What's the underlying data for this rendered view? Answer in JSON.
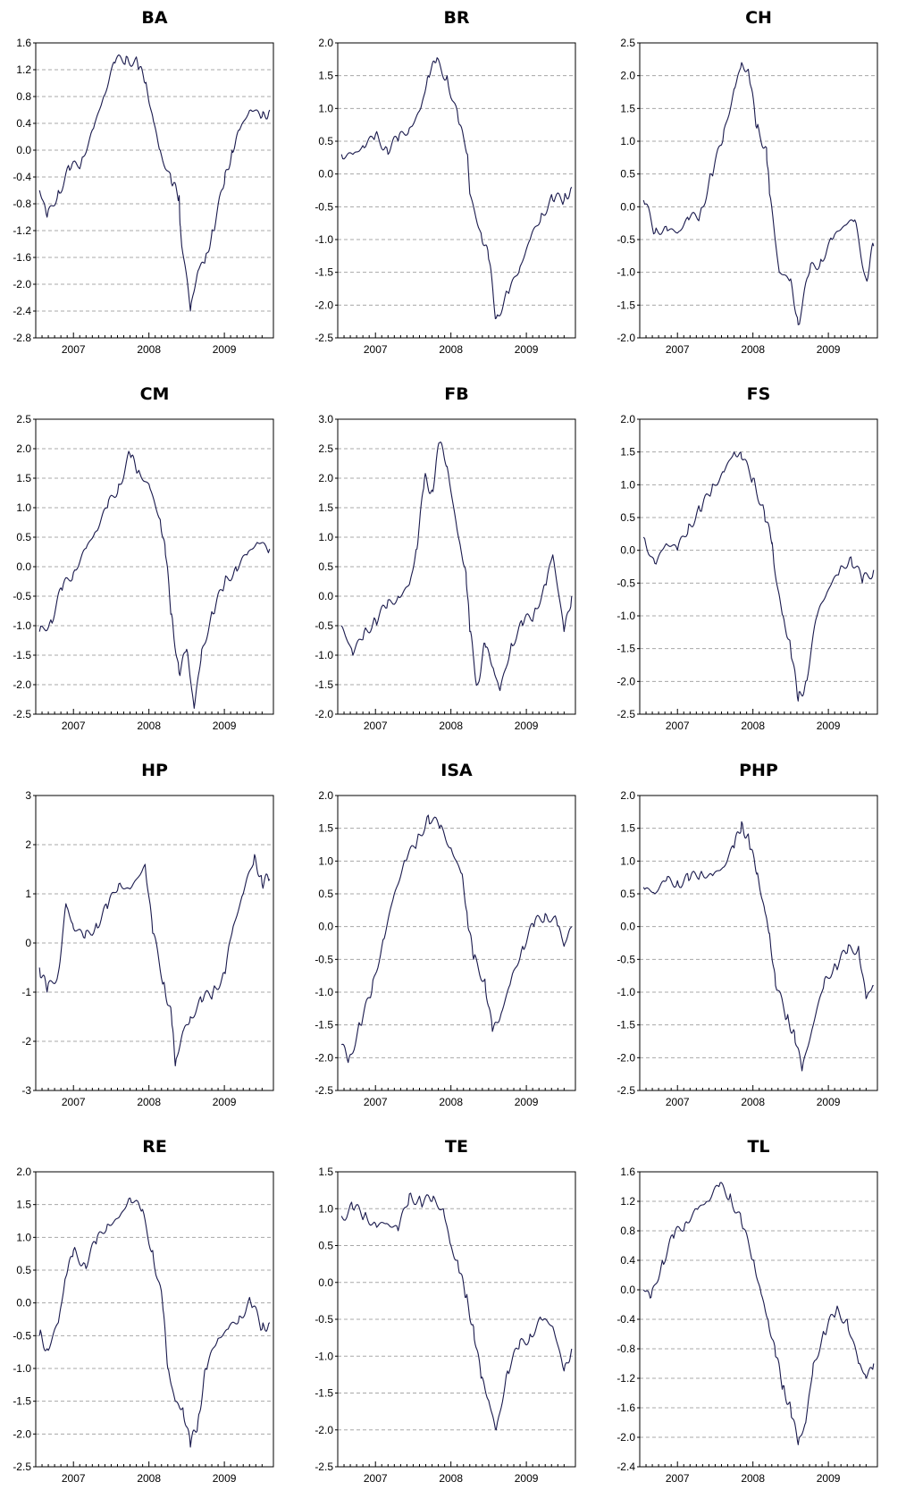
{
  "chart_data": [
    {
      "type": "line",
      "title": "BA",
      "x_tick_labels": [
        "2007",
        "2008",
        "2009"
      ],
      "ylim": [
        -2.8,
        1.6
      ],
      "y_ticks": [
        -2.8,
        -2.4,
        -2.0,
        -1.6,
        -1.2,
        -0.8,
        -0.4,
        0.0,
        0.4,
        0.8,
        1.2,
        1.6
      ],
      "y_tick_labels": [
        "-2.8",
        "-2.4",
        "-2.0",
        "-1.6",
        "-1.2",
        "-0.8",
        "-0.4",
        "0.0",
        "0.4",
        "0.8",
        "1.2",
        "1.6"
      ],
      "grid": true,
      "series": [
        {
          "x": [
            2006.55,
            2006.65,
            2006.8,
            2006.95,
            2007.1,
            2007.25,
            2007.4,
            2007.55,
            2007.7,
            2007.85,
            2007.95,
            2008.05,
            2008.15,
            2008.3,
            2008.4,
            2008.42,
            2008.55,
            2008.65,
            2008.75,
            2008.85,
            2009.0,
            2009.1,
            2009.2,
            2009.35,
            2009.5,
            2009.6
          ],
          "y": [
            -0.6,
            -1.0,
            -0.6,
            -0.3,
            -0.2,
            0.3,
            0.8,
            1.3,
            1.4,
            1.3,
            1.0,
            0.5,
            0.0,
            -0.5,
            -0.7,
            -1.2,
            -2.4,
            -1.8,
            -1.6,
            -1.2,
            -0.5,
            0.0,
            0.3,
            0.6,
            0.5,
            0.6
          ]
        }
      ]
    },
    {
      "type": "line",
      "title": "BR",
      "x_tick_labels": [
        "2007",
        "2008",
        "2009"
      ],
      "ylim": [
        -2.5,
        2.0
      ],
      "y_ticks": [
        -2.5,
        -2.0,
        -1.5,
        -1.0,
        -0.5,
        0.0,
        0.5,
        1.0,
        1.5,
        2.0
      ],
      "y_tick_labels": [
        "-2.5",
        "-2.0",
        "-1.5",
        "-1.0",
        "-0.5",
        "0.0",
        "0.5",
        "1.0",
        "1.5",
        "2.0"
      ],
      "grid": true,
      "series": [
        {
          "x": [
            2006.55,
            2006.7,
            2006.85,
            2007.0,
            2007.15,
            2007.3,
            2007.45,
            2007.6,
            2007.7,
            2007.8,
            2007.95,
            2008.1,
            2008.22,
            2008.25,
            2008.4,
            2008.5,
            2008.6,
            2008.75,
            2008.9,
            2009.05,
            2009.2,
            2009.35,
            2009.5,
            2009.6
          ],
          "y": [
            0.3,
            0.3,
            0.4,
            0.6,
            0.4,
            0.5,
            0.7,
            1.0,
            1.5,
            1.7,
            1.5,
            0.8,
            0.3,
            -0.3,
            -0.9,
            -1.3,
            -2.2,
            -1.8,
            -1.5,
            -1.0,
            -0.6,
            -0.4,
            -0.4,
            -0.2
          ]
        }
      ]
    },
    {
      "type": "line",
      "title": "CH",
      "x_tick_labels": [
        "2007",
        "2008",
        "2009"
      ],
      "ylim": [
        -2.0,
        2.5
      ],
      "y_ticks": [
        -2.0,
        -1.5,
        -1.0,
        -0.5,
        0.0,
        0.5,
        1.0,
        1.5,
        2.0,
        2.5
      ],
      "y_tick_labels": [
        "-2.0",
        "-1.5",
        "-1.0",
        "-0.5",
        "0.0",
        "0.5",
        "1.0",
        "1.5",
        "2.0",
        "2.5"
      ],
      "grid": true,
      "series": [
        {
          "x": [
            2006.55,
            2006.7,
            2006.85,
            2007.0,
            2007.15,
            2007.3,
            2007.45,
            2007.6,
            2007.75,
            2007.85,
            2007.95,
            2008.05,
            2008.18,
            2008.22,
            2008.35,
            2008.5,
            2008.6,
            2008.75,
            2008.9,
            2009.05,
            2009.2,
            2009.35,
            2009.5,
            2009.6
          ],
          "y": [
            0.1,
            -0.4,
            -0.3,
            -0.4,
            -0.2,
            -0.1,
            0.5,
            1.0,
            1.8,
            2.2,
            2.0,
            1.2,
            0.9,
            0.2,
            -1.0,
            -1.1,
            -1.8,
            -1.0,
            -0.8,
            -0.5,
            -0.3,
            -0.2,
            -1.1,
            -0.6
          ]
        }
      ]
    },
    {
      "type": "line",
      "title": "CM",
      "x_tick_labels": [
        "2007",
        "2008",
        "2009"
      ],
      "ylim": [
        -2.5,
        2.5
      ],
      "y_ticks": [
        -2.5,
        -2.0,
        -1.5,
        -1.0,
        -0.5,
        0.0,
        0.5,
        1.0,
        1.5,
        2.0,
        2.5
      ],
      "y_tick_labels": [
        "-2.5",
        "-2.0",
        "-1.5",
        "-1.0",
        "-0.5",
        "0.0",
        "0.5",
        "1.0",
        "1.5",
        "2.0",
        "2.5"
      ],
      "grid": true,
      "series": [
        {
          "x": [
            2006.55,
            2006.7,
            2006.85,
            2007.0,
            2007.15,
            2007.3,
            2007.45,
            2007.6,
            2007.75,
            2007.85,
            2008.0,
            2008.15,
            2008.22,
            2008.3,
            2008.4,
            2008.5,
            2008.6,
            2008.7,
            2008.85,
            2009.0,
            2009.15,
            2009.3,
            2009.45,
            2009.6
          ],
          "y": [
            -1.1,
            -0.9,
            -0.4,
            -0.1,
            0.3,
            0.6,
            1.0,
            1.4,
            1.9,
            1.6,
            1.4,
            0.8,
            0.2,
            -0.8,
            -1.8,
            -1.4,
            -2.4,
            -1.4,
            -0.8,
            -0.3,
            0.0,
            0.2,
            0.4,
            0.3
          ]
        }
      ]
    },
    {
      "type": "line",
      "title": "FB",
      "x_tick_labels": [
        "2007",
        "2008",
        "2009"
      ],
      "ylim": [
        -2.0,
        3.0
      ],
      "y_ticks": [
        -2.0,
        -1.5,
        -1.0,
        -0.5,
        0.0,
        0.5,
        1.0,
        1.5,
        2.0,
        2.5,
        3.0
      ],
      "y_tick_labels": [
        "-2.0",
        "-1.5",
        "-1.0",
        "-0.5",
        "0.0",
        "0.5",
        "1.0",
        "1.5",
        "2.0",
        "2.5",
        "3.0"
      ],
      "grid": true,
      "series": [
        {
          "x": [
            2006.55,
            2006.7,
            2006.85,
            2007.0,
            2007.15,
            2007.3,
            2007.45,
            2007.55,
            2007.65,
            2007.75,
            2007.85,
            2007.95,
            2008.1,
            2008.2,
            2008.25,
            2008.35,
            2008.45,
            2008.55,
            2008.65,
            2008.8,
            2008.95,
            2009.1,
            2009.25,
            2009.35,
            2009.5,
            2009.6
          ],
          "y": [
            -0.5,
            -1.0,
            -0.6,
            -0.4,
            -0.2,
            0.0,
            0.2,
            0.8,
            2.0,
            1.8,
            2.6,
            2.2,
            1.0,
            0.4,
            -0.6,
            -1.5,
            -0.8,
            -1.2,
            -1.6,
            -0.8,
            -0.5,
            -0.3,
            0.2,
            0.7,
            -0.6,
            0.0
          ]
        }
      ]
    },
    {
      "type": "line",
      "title": "FS",
      "x_tick_labels": [
        "2007",
        "2008",
        "2009"
      ],
      "ylim": [
        -2.5,
        2.0
      ],
      "y_ticks": [
        -2.5,
        -2.0,
        -1.5,
        -1.0,
        -0.5,
        0.0,
        0.5,
        1.0,
        1.5,
        2.0
      ],
      "y_tick_labels": [
        "-2.5",
        "-2.0",
        "-1.5",
        "-1.0",
        "-0.5",
        "0.0",
        "0.5",
        "1.0",
        "1.5",
        "2.0"
      ],
      "grid": true,
      "series": [
        {
          "x": [
            2006.55,
            2006.7,
            2006.85,
            2007.0,
            2007.15,
            2007.3,
            2007.45,
            2007.6,
            2007.75,
            2007.85,
            2008.0,
            2008.15,
            2008.25,
            2008.3,
            2008.4,
            2008.5,
            2008.6,
            2008.7,
            2008.85,
            2009.0,
            2009.15,
            2009.3,
            2009.45,
            2009.6
          ],
          "y": [
            0.2,
            -0.2,
            0.1,
            0.0,
            0.4,
            0.6,
            0.9,
            1.2,
            1.5,
            1.4,
            1.1,
            0.6,
            0.1,
            -0.4,
            -1.0,
            -1.5,
            -2.3,
            -2.0,
            -1.0,
            -0.6,
            -0.3,
            -0.1,
            -0.5,
            -0.3
          ]
        }
      ]
    },
    {
      "type": "line",
      "title": "HP",
      "x_tick_labels": [
        "2007",
        "2008",
        "2009"
      ],
      "ylim": [
        -3,
        3
      ],
      "y_ticks": [
        -3,
        -2,
        -1,
        0,
        1,
        2,
        3
      ],
      "y_tick_labels": [
        "-3",
        "-2",
        "-1",
        "0",
        "1",
        "2",
        "3"
      ],
      "grid": true,
      "series": [
        {
          "x": [
            2006.55,
            2006.65,
            2006.8,
            2006.9,
            2007.0,
            2007.15,
            2007.3,
            2007.45,
            2007.6,
            2007.75,
            2007.95,
            2008.05,
            2008.2,
            2008.3,
            2008.35,
            2008.45,
            2008.55,
            2008.7,
            2008.85,
            2009.0,
            2009.1,
            2009.25,
            2009.4,
            2009.5,
            2009.6
          ],
          "y": [
            -0.5,
            -1.0,
            -0.6,
            0.8,
            0.3,
            0.1,
            0.4,
            0.7,
            1.2,
            1.1,
            1.6,
            0.2,
            -0.8,
            -1.5,
            -2.5,
            -1.8,
            -1.5,
            -1.2,
            -1.0,
            -0.6,
            0.2,
            1.0,
            1.8,
            1.2,
            1.3
          ]
        }
      ]
    },
    {
      "type": "line",
      "title": "ISA",
      "x_tick_labels": [
        "2007",
        "2008",
        "2009"
      ],
      "ylim": [
        -2.5,
        2.0
      ],
      "y_ticks": [
        -2.5,
        -2.0,
        -1.5,
        -1.0,
        -0.5,
        0.0,
        0.5,
        1.0,
        1.5,
        2.0
      ],
      "y_tick_labels": [
        "-2.5",
        "-2.0",
        "-1.5",
        "-1.0",
        "-0.5",
        "0.0",
        "0.5",
        "1.0",
        "1.5",
        "2.0"
      ],
      "grid": true,
      "series": [
        {
          "x": [
            2006.55,
            2006.65,
            2006.8,
            2006.95,
            2007.1,
            2007.25,
            2007.4,
            2007.55,
            2007.7,
            2007.85,
            2008.0,
            2008.15,
            2008.22,
            2008.3,
            2008.45,
            2008.55,
            2008.65,
            2008.8,
            2008.95,
            2009.1,
            2009.25,
            2009.4,
            2009.5,
            2009.6
          ],
          "y": [
            -1.8,
            -2.0,
            -1.5,
            -1.0,
            -0.2,
            0.5,
            1.0,
            1.3,
            1.7,
            1.5,
            1.2,
            0.8,
            0.1,
            -0.5,
            -0.8,
            -1.6,
            -1.4,
            -0.8,
            -0.3,
            0.0,
            0.2,
            0.1,
            -0.3,
            0.0
          ]
        }
      ]
    },
    {
      "type": "line",
      "title": "PHP",
      "x_tick_labels": [
        "2007",
        "2008",
        "2009"
      ],
      "ylim": [
        -2.5,
        2.0
      ],
      "y_ticks": [
        -2.5,
        -2.0,
        -1.5,
        -1.0,
        -0.5,
        0.0,
        0.5,
        1.0,
        1.5,
        2.0
      ],
      "y_tick_labels": [
        "-2.5",
        "-2.0",
        "-1.5",
        "-1.0",
        "-0.5",
        "0.0",
        "0.5",
        "1.0",
        "1.5",
        "2.0"
      ],
      "grid": true,
      "series": [
        {
          "x": [
            2006.55,
            2006.7,
            2006.85,
            2007.0,
            2007.15,
            2007.3,
            2007.45,
            2007.6,
            2007.75,
            2007.85,
            2007.95,
            2008.05,
            2008.15,
            2008.22,
            2008.3,
            2008.45,
            2008.55,
            2008.65,
            2008.8,
            2008.95,
            2009.1,
            2009.25,
            2009.4,
            2009.5,
            2009.6
          ],
          "y": [
            0.6,
            0.5,
            0.7,
            0.7,
            0.7,
            0.8,
            0.8,
            0.9,
            1.2,
            1.6,
            1.3,
            0.8,
            0.3,
            -0.1,
            -0.9,
            -1.4,
            -1.6,
            -2.2,
            -1.5,
            -0.8,
            -0.6,
            -0.4,
            -0.3,
            -1.1,
            -0.9
          ]
        }
      ]
    },
    {
      "type": "line",
      "title": "RE",
      "x_tick_labels": [
        "2007",
        "2008",
        "2009"
      ],
      "ylim": [
        -2.5,
        2.0
      ],
      "y_ticks": [
        -2.5,
        -2.0,
        -1.5,
        -1.0,
        -0.5,
        0.0,
        0.5,
        1.0,
        1.5,
        2.0
      ],
      "y_tick_labels": [
        "-2.5",
        "-2.0",
        "-1.5",
        "-1.0",
        "-0.5",
        "0.0",
        "0.5",
        "1.0",
        "1.5",
        "2.0"
      ],
      "grid": true,
      "series": [
        {
          "x": [
            2006.55,
            2006.65,
            2006.8,
            2006.9,
            2007.0,
            2007.15,
            2007.3,
            2007.45,
            2007.6,
            2007.75,
            2007.9,
            2008.05,
            2008.18,
            2008.25,
            2008.35,
            2008.45,
            2008.55,
            2008.65,
            2008.75,
            2008.9,
            2009.05,
            2009.2,
            2009.35,
            2009.5,
            2009.6
          ],
          "y": [
            -0.5,
            -0.7,
            -0.3,
            0.4,
            0.8,
            0.6,
            0.9,
            1.2,
            1.3,
            1.6,
            1.4,
            0.8,
            0.0,
            -1.0,
            -1.5,
            -1.6,
            -2.2,
            -1.8,
            -1.0,
            -0.6,
            -0.4,
            -0.2,
            0.0,
            -0.4,
            -0.3
          ]
        }
      ]
    },
    {
      "type": "line",
      "title": "TE",
      "x_tick_labels": [
        "2007",
        "2008",
        "2009"
      ],
      "ylim": [
        -2.5,
        1.5
      ],
      "y_ticks": [
        -2.5,
        -2.0,
        -1.5,
        -1.0,
        -0.5,
        0.0,
        0.5,
        1.0,
        1.5
      ],
      "y_tick_labels": [
        "-2.5",
        "-2.0",
        "-1.5",
        "-1.0",
        "-0.5",
        "0.0",
        "0.5",
        "1.0",
        "1.5"
      ],
      "grid": true,
      "series": [
        {
          "x": [
            2006.55,
            2006.7,
            2006.85,
            2007.0,
            2007.15,
            2007.3,
            2007.45,
            2007.6,
            2007.75,
            2007.9,
            2008.0,
            2008.1,
            2008.2,
            2008.3,
            2008.4,
            2008.5,
            2008.6,
            2008.75,
            2008.9,
            2009.05,
            2009.2,
            2009.35,
            2009.5,
            2009.6
          ],
          "y": [
            0.9,
            1.0,
            0.9,
            0.8,
            0.8,
            0.7,
            1.2,
            1.1,
            1.1,
            1.0,
            0.5,
            0.2,
            -0.2,
            -0.6,
            -1.3,
            -1.6,
            -2.0,
            -1.2,
            -0.9,
            -0.7,
            -0.5,
            -0.6,
            -1.2,
            -0.9
          ]
        }
      ]
    },
    {
      "type": "line",
      "title": "TL",
      "x_tick_labels": [
        "2007",
        "2008",
        "2009"
      ],
      "ylim": [
        -2.4,
        1.6
      ],
      "y_ticks": [
        -2.4,
        -2.0,
        -1.6,
        -1.2,
        -0.8,
        -0.4,
        0.0,
        0.4,
        0.8,
        1.2,
        1.6
      ],
      "y_tick_labels": [
        "-2.4",
        "-2.0",
        "-1.6",
        "-1.2",
        "-0.8",
        "-0.4",
        "0.0",
        "0.4",
        "0.8",
        "1.2",
        "1.6"
      ],
      "grid": true,
      "series": [
        {
          "x": [
            2006.55,
            2006.65,
            2006.8,
            2006.95,
            2007.1,
            2007.25,
            2007.4,
            2007.55,
            2007.7,
            2007.85,
            2008.0,
            2008.1,
            2008.2,
            2008.3,
            2008.4,
            2008.5,
            2008.6,
            2008.7,
            2008.8,
            2008.95,
            2009.1,
            2009.25,
            2009.4,
            2009.5,
            2009.6
          ],
          "y": [
            0.0,
            -0.1,
            0.4,
            0.7,
            0.9,
            1.1,
            1.2,
            1.4,
            1.3,
            0.9,
            0.4,
            0.0,
            -0.4,
            -0.9,
            -1.3,
            -1.6,
            -2.1,
            -1.8,
            -1.0,
            -0.6,
            -0.3,
            -0.4,
            -1.0,
            -1.2,
            -1.0
          ]
        }
      ]
    }
  ]
}
